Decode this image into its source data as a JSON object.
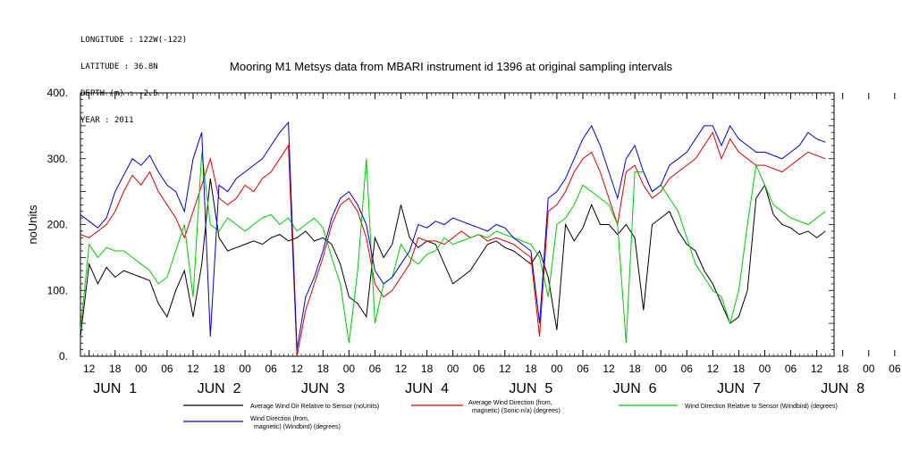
{
  "header": {
    "meta_lines": [
      "LONGITUDE : 122W(-122)",
      "LATITUDE : 36.8N",
      "DEPTH (m) : -2.5",
      "YEAR : 2011"
    ],
    "title": "Mooring M1 Metsys data from MBARI instrument id 1396 at original sampling intervals"
  },
  "chart_data": {
    "type": "line",
    "title": "Mooring M1 Metsys data from MBARI instrument id 1396 at original sampling intervals",
    "ylabel": "noUnits",
    "ylim": [
      0,
      400
    ],
    "y_ticks": [
      0,
      100,
      200,
      300,
      400
    ],
    "y_tick_labels": [
      "0.",
      "100.",
      "200.",
      "300.",
      "400."
    ],
    "xlim_hours": [
      0,
      174
    ],
    "x_hour_ticks": [
      "12",
      "18",
      "00",
      "06",
      "12",
      "18",
      "00",
      "06",
      "12",
      "18",
      "00",
      "06",
      "12",
      "18",
      "00",
      "06",
      "12",
      "18",
      "00",
      "06",
      "12",
      "18",
      "00",
      "06",
      "12",
      "18",
      "00",
      "06",
      "12",
      "18",
      "00",
      "06"
    ],
    "x_day_labels": [
      "JUN  1",
      "JUN  2",
      "JUN  3",
      "JUN  4",
      "JUN  5",
      "JUN  6",
      "JUN  7",
      "JUN  8"
    ],
    "grid": false,
    "legend_placement": "bottom",
    "series": [
      {
        "name": "Average Wind Dir Relative to Sensor (noUnits)",
        "color": "#000000",
        "x": [
          0,
          2,
          4,
          6,
          8,
          10,
          12,
          14,
          16,
          18,
          20,
          22,
          24,
          26,
          28,
          30,
          32,
          34,
          36,
          38,
          40,
          42,
          44,
          46,
          48,
          50,
          52,
          54,
          56,
          58,
          60,
          62,
          64,
          66,
          68,
          70,
          72,
          74,
          76,
          78,
          80,
          82,
          84,
          86,
          88,
          90,
          92,
          94,
          96,
          98,
          100,
          102,
          104,
          106,
          108,
          110,
          112,
          114,
          116,
          118,
          120,
          122,
          124,
          126,
          128,
          130,
          132,
          134,
          136,
          138,
          140,
          142,
          144,
          146,
          148,
          150,
          152,
          154,
          156,
          158,
          160,
          162,
          164,
          166,
          168,
          170,
          172
        ],
        "y": [
          30,
          140,
          110,
          135,
          120,
          130,
          125,
          120,
          115,
          80,
          60,
          100,
          130,
          60,
          140,
          270,
          180,
          160,
          165,
          170,
          175,
          170,
          180,
          185,
          175,
          180,
          190,
          175,
          180,
          170,
          140,
          90,
          80,
          60,
          180,
          150,
          170,
          230,
          180,
          165,
          175,
          170,
          140,
          110,
          120,
          130,
          150,
          170,
          175,
          165,
          160,
          150,
          140,
          160,
          120,
          40,
          200,
          175,
          195,
          230,
          200,
          200,
          185,
          200,
          180,
          70,
          200,
          210,
          220,
          190,
          170,
          160,
          130,
          110,
          80,
          50,
          60,
          100,
          240,
          260,
          215,
          200,
          195,
          185,
          190,
          180,
          190
        ]
      },
      {
        "name": "Average Wind Direction (from, magnetic) (Sonic-n/a) (degrees)",
        "color": "#e00000",
        "x": [
          0,
          2,
          4,
          6,
          8,
          10,
          12,
          14,
          16,
          18,
          20,
          22,
          24,
          26,
          28,
          30,
          32,
          34,
          36,
          38,
          40,
          42,
          44,
          46,
          48,
          50,
          52,
          54,
          56,
          58,
          60,
          62,
          64,
          66,
          68,
          70,
          72,
          74,
          76,
          78,
          80,
          82,
          84,
          86,
          88,
          90,
          92,
          94,
          96,
          98,
          100,
          102,
          104,
          106,
          108,
          110,
          112,
          114,
          116,
          118,
          120,
          122,
          124,
          126,
          128,
          130,
          132,
          134,
          136,
          138,
          140,
          142,
          144,
          146,
          148,
          150,
          152,
          154,
          156,
          158,
          160,
          162,
          164,
          166,
          168,
          170,
          172
        ],
        "y": [
          185,
          180,
          190,
          200,
          220,
          250,
          275,
          260,
          280,
          250,
          230,
          210,
          180,
          220,
          260,
          300,
          240,
          230,
          240,
          260,
          250,
          270,
          280,
          300,
          320,
          0,
          70,
          110,
          150,
          200,
          230,
          240,
          220,
          180,
          110,
          90,
          100,
          120,
          140,
          180,
          175,
          175,
          170,
          180,
          190,
          180,
          185,
          175,
          180,
          175,
          170,
          160,
          150,
          30,
          220,
          230,
          250,
          280,
          300,
          310,
          280,
          240,
          200,
          280,
          290,
          260,
          240,
          250,
          270,
          280,
          290,
          300,
          320,
          340,
          300,
          330,
          310,
          300,
          290,
          290,
          285,
          280,
          290,
          300,
          310,
          305,
          300
        ]
      },
      {
        "name": "Wind Direction Relative to Sensor (Windbird) (degrees)",
        "color": "#00cc00",
        "x": [
          0,
          2,
          4,
          6,
          8,
          10,
          12,
          14,
          16,
          18,
          20,
          22,
          24,
          26,
          28,
          30,
          32,
          34,
          36,
          38,
          40,
          42,
          44,
          46,
          48,
          50,
          52,
          54,
          56,
          58,
          60,
          62,
          64,
          66,
          68,
          70,
          72,
          74,
          76,
          78,
          80,
          82,
          84,
          86,
          88,
          90,
          92,
          94,
          96,
          98,
          100,
          102,
          104,
          106,
          108,
          110,
          112,
          114,
          116,
          118,
          120,
          122,
          124,
          126,
          128,
          130,
          132,
          134,
          136,
          138,
          140,
          142,
          144,
          146,
          148,
          150,
          152,
          154,
          156,
          158,
          160,
          162,
          164,
          166,
          168,
          170,
          172
        ],
        "y": [
          40,
          170,
          150,
          165,
          160,
          160,
          150,
          140,
          130,
          110,
          120,
          160,
          200,
          90,
          310,
          200,
          190,
          210,
          200,
          190,
          200,
          210,
          215,
          200,
          210,
          190,
          200,
          210,
          195,
          150,
          110,
          20,
          130,
          300,
          50,
          110,
          120,
          170,
          150,
          140,
          155,
          160,
          180,
          170,
          175,
          180,
          185,
          180,
          190,
          185,
          180,
          175,
          170,
          150,
          90,
          200,
          210,
          230,
          260,
          250,
          240,
          230,
          200,
          20,
          280,
          280,
          250,
          260,
          240,
          220,
          180,
          140,
          120,
          100,
          90,
          50,
          100,
          200,
          290,
          260,
          230,
          220,
          210,
          205,
          200,
          210,
          220
        ]
      },
      {
        "name": "Wind Direction (from, magnetic) (Windbird) (degrees)",
        "color": "#0000cc",
        "x": [
          0,
          2,
          4,
          6,
          8,
          10,
          12,
          14,
          16,
          18,
          20,
          22,
          24,
          26,
          28,
          30,
          32,
          34,
          36,
          38,
          40,
          42,
          44,
          46,
          48,
          50,
          52,
          54,
          56,
          58,
          60,
          62,
          64,
          66,
          68,
          70,
          72,
          74,
          76,
          78,
          80,
          82,
          84,
          86,
          88,
          90,
          92,
          94,
          96,
          98,
          100,
          102,
          104,
          106,
          108,
          110,
          112,
          114,
          116,
          118,
          120,
          122,
          124,
          126,
          128,
          130,
          132,
          134,
          136,
          138,
          140,
          142,
          144,
          146,
          148,
          150,
          152,
          154,
          156,
          158,
          160,
          162,
          164,
          166,
          168,
          170,
          172
        ],
        "y": [
          215,
          205,
          195,
          210,
          250,
          275,
          300,
          290,
          305,
          280,
          260,
          250,
          220,
          300,
          340,
          30,
          260,
          250,
          270,
          280,
          290,
          300,
          320,
          340,
          355,
          10,
          90,
          120,
          160,
          210,
          240,
          250,
          230,
          200,
          130,
          110,
          120,
          140,
          160,
          200,
          195,
          205,
          200,
          210,
          205,
          200,
          195,
          190,
          200,
          195,
          180,
          170,
          160,
          50,
          240,
          250,
          270,
          300,
          330,
          350,
          320,
          280,
          240,
          300,
          320,
          280,
          250,
          260,
          290,
          300,
          310,
          330,
          350,
          350,
          320,
          350,
          330,
          320,
          310,
          310,
          305,
          300,
          310,
          320,
          340,
          330,
          325
        ]
      }
    ]
  },
  "legend": {
    "items": [
      {
        "lines": [
          "Average Wind Dir Relative to Sensor (noUnits)"
        ],
        "color": "#000000"
      },
      {
        "lines": [
          "Average Wind Direction (from,",
          "magnetic) (Sonic-n/a) (degrees)"
        ],
        "color": "#e00000"
      },
      {
        "lines": [
          "Wind Direction Relative to Sensor (Windbird) (degrees)"
        ],
        "color": "#00cc00"
      },
      {
        "lines": [
          "Wind Direction (from,",
          "magnetic) (Windbird) (degrees)"
        ],
        "color": "#0000cc"
      }
    ]
  }
}
